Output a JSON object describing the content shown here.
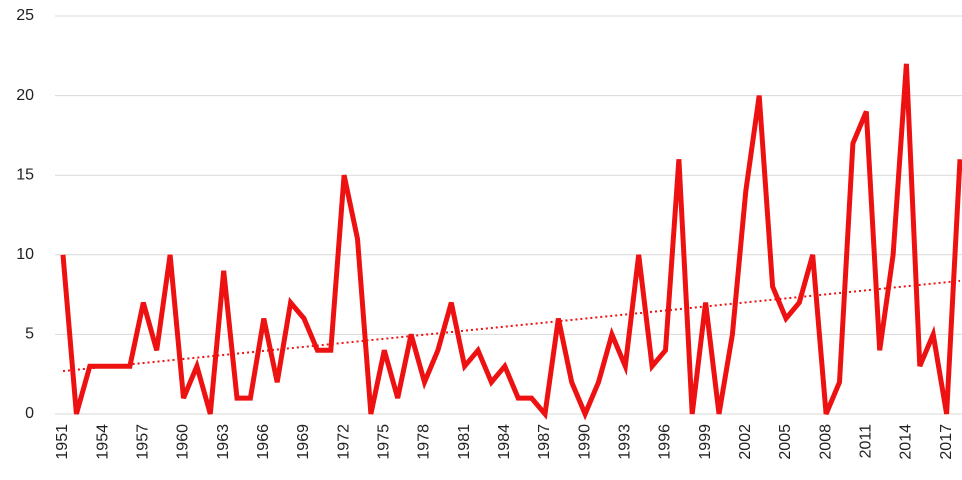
{
  "chart_data": {
    "type": "line",
    "categories": [
      "1951",
      null,
      null,
      "1954",
      null,
      null,
      "1957",
      null,
      null,
      "1960",
      null,
      null,
      "1963",
      null,
      null,
      "1966",
      null,
      null,
      "1969",
      null,
      null,
      "1972",
      null,
      null,
      "1975",
      null,
      null,
      "1978",
      null,
      null,
      "1981",
      null,
      null,
      "1984",
      null,
      null,
      "1987",
      null,
      null,
      "1990",
      null,
      null,
      "1993",
      null,
      null,
      "1996",
      null,
      null,
      "1999",
      null,
      null,
      "2002",
      null,
      null,
      "2005",
      null,
      null,
      "2008",
      null,
      null,
      "2011",
      null,
      null,
      "2014",
      null,
      null,
      "2017",
      null
    ],
    "values": [
      10,
      0,
      3,
      3,
      3,
      3,
      7,
      4,
      10,
      1,
      3,
      0,
      9,
      1,
      1,
      6,
      2,
      7,
      6,
      4,
      4,
      15,
      11,
      0,
      4,
      1,
      5,
      2,
      4,
      7,
      3,
      4,
      2,
      3,
      1,
      1,
      0,
      6,
      2,
      0,
      2,
      5,
      3,
      10,
      3,
      4,
      16,
      0,
      7,
      0,
      5,
      14,
      20,
      8,
      6,
      7,
      10,
      0,
      2,
      17,
      19,
      4,
      10,
      22,
      3,
      5,
      0,
      16
    ],
    "color": "#ee1111",
    "trendline": true,
    "ylim": [
      0,
      25
    ],
    "yticks": [
      0,
      5,
      10,
      15,
      20,
      25
    ],
    "grid": true
  }
}
